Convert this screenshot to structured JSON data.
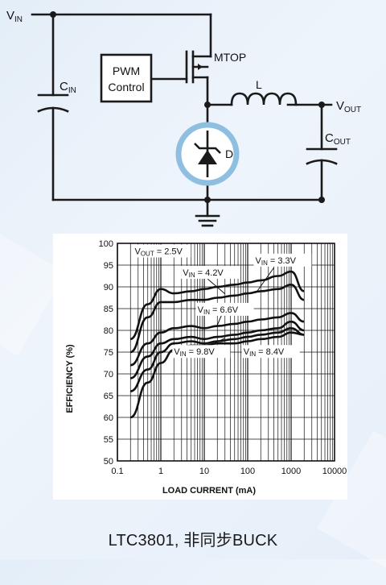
{
  "schematic": {
    "labels": {
      "vin": "V",
      "vin_sub": "IN",
      "cin": "C",
      "cin_sub": "IN",
      "pwm_line1": "PWM",
      "pwm_line2": "Control",
      "mtop": "MTOP",
      "inductor": "L",
      "vout": "V",
      "vout_sub": "OUT",
      "cout": "C",
      "cout_sub": "OUT",
      "diode": "D"
    },
    "highlight_color": "#8fbfe0"
  },
  "chart_data": {
    "type": "line",
    "xlabel": "LOAD CURRENT (mA)",
    "ylabel": "EFFICIENCY (%)",
    "x_scale": "log",
    "xlim": [
      0.1,
      10000
    ],
    "ylim": [
      50,
      100
    ],
    "x_ticks": [
      "0.1",
      "1",
      "10",
      "100",
      "1000",
      "10000"
    ],
    "y_ticks": [
      "50",
      "55",
      "60",
      "65",
      "70",
      "75",
      "80",
      "85",
      "90",
      "95",
      "100"
    ],
    "grid": true,
    "annotations": [
      {
        "text": "V",
        "sub": "OUT",
        "rest": " = 2.5V"
      },
      {
        "text": "V",
        "sub": "IN",
        "rest": " = 4.2V"
      },
      {
        "text": "V",
        "sub": "IN",
        "rest": " = 3.3V"
      },
      {
        "text": "V",
        "sub": "IN",
        "rest": " = 6.6V"
      },
      {
        "text": "V",
        "sub": "IN",
        "rest": " = 9.8V"
      },
      {
        "text": "V",
        "sub": "IN",
        "rest": " = 8.4V"
      }
    ],
    "series": [
      {
        "name": "VIN = 3.3V",
        "x": [
          0.2,
          0.5,
          1,
          2,
          5,
          10,
          20,
          50,
          100,
          200,
          500,
          1000,
          2000
        ],
        "y": [
          78,
          86,
          89.5,
          88.5,
          89,
          89.5,
          90,
          90.5,
          91,
          91.5,
          92.5,
          93.5,
          89
        ]
      },
      {
        "name": "VIN = 4.2V",
        "x": [
          0.2,
          0.5,
          1,
          2,
          5,
          10,
          20,
          50,
          100,
          200,
          500,
          1000,
          2000
        ],
        "y": [
          75,
          83,
          86.5,
          86.5,
          87,
          87,
          87.5,
          88,
          88.5,
          89,
          89.5,
          90.5,
          87
        ]
      },
      {
        "name": "VIN = 6.6V",
        "x": [
          0.2,
          0.5,
          1,
          2,
          5,
          10,
          20,
          50,
          100,
          200,
          500,
          1000,
          2000
        ],
        "y": [
          72,
          77,
          79.5,
          80.5,
          81,
          80.5,
          81,
          81.5,
          82,
          82.5,
          83,
          84,
          82
        ]
      },
      {
        "name": "VIN = 8.4V",
        "x": [
          0.2,
          0.5,
          1,
          2,
          5,
          10,
          20,
          50,
          100,
          200,
          500,
          1000,
          2000
        ],
        "y": [
          69,
          74,
          77,
          78,
          78.5,
          78,
          78.5,
          79,
          79.5,
          80,
          80.5,
          82,
          80
        ]
      },
      {
        "name": "VIN = 9.8V",
        "x": [
          0.2,
          0.5,
          1,
          2,
          5,
          10,
          20,
          50,
          100,
          200,
          500,
          1000,
          2000
        ],
        "y": [
          66,
          71,
          75,
          77,
          77.5,
          77,
          77.5,
          78,
          78.5,
          79,
          79.5,
          80.5,
          79
        ]
      },
      {
        "name": "",
        "x": [
          0.2,
          0.5,
          1,
          2,
          5,
          10,
          20,
          50,
          100,
          200,
          500,
          1000,
          2000
        ],
        "y": [
          60,
          68,
          72.5,
          75.5,
          76.5,
          76.5,
          77,
          77,
          77.5,
          78,
          78.5,
          79.5,
          79
        ]
      }
    ]
  },
  "caption": "LTC3801, 非同步BUCK"
}
